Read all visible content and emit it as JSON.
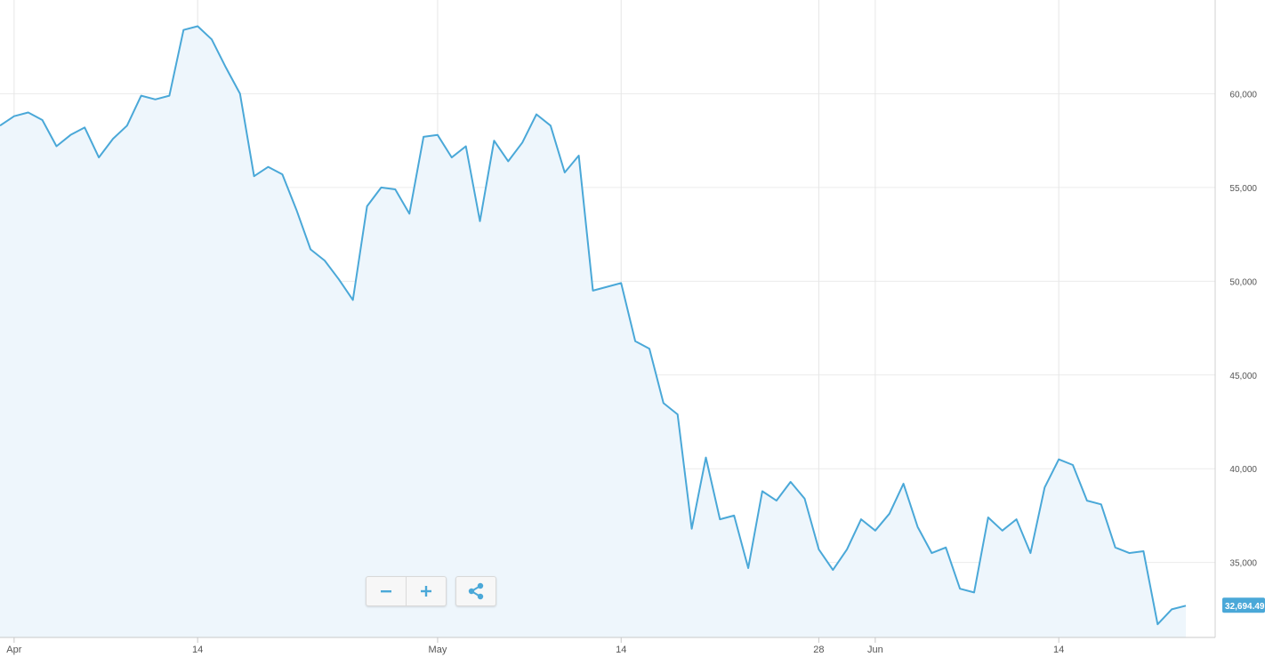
{
  "chart_data": {
    "type": "area",
    "title": "",
    "xlabel": "",
    "ylabel": "",
    "x_range": [
      "2021-03-31",
      "2021-06-23"
    ],
    "ylim": [
      31000,
      65000
    ],
    "y_ticks": [
      35000,
      40000,
      45000,
      50000,
      55000,
      60000
    ],
    "y_tick_labels": [
      "35,000",
      "40,000",
      "45,000",
      "50,000",
      "55,000",
      "60,000"
    ],
    "x_ticks": [
      {
        "date": "2021-04-01",
        "label": "Apr"
      },
      {
        "date": "2021-04-14",
        "label": "14"
      },
      {
        "date": "2021-05-01",
        "label": "May"
      },
      {
        "date": "2021-05-14",
        "label": "14"
      },
      {
        "date": "2021-05-28",
        "label": "28"
      },
      {
        "date": "2021-06-01",
        "label": "Jun"
      },
      {
        "date": "2021-06-14",
        "label": "14"
      }
    ],
    "grid": true,
    "line_color": "#4aa8d8",
    "fill_color": "#eef6fc",
    "last_value": 32694.49,
    "last_value_label": "32,694.49",
    "series": [
      {
        "points": [
          [
            "2021-03-31",
            58300
          ],
          [
            "2021-04-01",
            58800
          ],
          [
            "2021-04-02",
            59000
          ],
          [
            "2021-04-03",
            58600
          ],
          [
            "2021-04-04",
            57200
          ],
          [
            "2021-04-05",
            57800
          ],
          [
            "2021-04-06",
            58200
          ],
          [
            "2021-04-07",
            56600
          ],
          [
            "2021-04-08",
            57600
          ],
          [
            "2021-04-09",
            58300
          ],
          [
            "2021-04-10",
            59900
          ],
          [
            "2021-04-11",
            59700
          ],
          [
            "2021-04-12",
            59900
          ],
          [
            "2021-04-13",
            63400
          ],
          [
            "2021-04-14",
            63600
          ],
          [
            "2021-04-15",
            62900
          ],
          [
            "2021-04-16",
            61400
          ],
          [
            "2021-04-17",
            60000
          ],
          [
            "2021-04-18",
            55600
          ],
          [
            "2021-04-19",
            56100
          ],
          [
            "2021-04-20",
            55700
          ],
          [
            "2021-04-21",
            53800
          ],
          [
            "2021-04-22",
            51700
          ],
          [
            "2021-04-23",
            51100
          ],
          [
            "2021-04-24",
            50100
          ],
          [
            "2021-04-25",
            49000
          ],
          [
            "2021-04-26",
            54000
          ],
          [
            "2021-04-27",
            55000
          ],
          [
            "2021-04-28",
            54900
          ],
          [
            "2021-04-29",
            53600
          ],
          [
            "2021-04-30",
            57700
          ],
          [
            "2021-05-01",
            57800
          ],
          [
            "2021-05-02",
            56600
          ],
          [
            "2021-05-03",
            57200
          ],
          [
            "2021-05-04",
            53200
          ],
          [
            "2021-05-05",
            57500
          ],
          [
            "2021-05-06",
            56400
          ],
          [
            "2021-05-07",
            57400
          ],
          [
            "2021-05-08",
            58900
          ],
          [
            "2021-05-09",
            58300
          ],
          [
            "2021-05-10",
            55800
          ],
          [
            "2021-05-11",
            56700
          ],
          [
            "2021-05-12",
            49500
          ],
          [
            "2021-05-13",
            49700
          ],
          [
            "2021-05-14",
            49900
          ],
          [
            "2021-05-15",
            46800
          ],
          [
            "2021-05-16",
            46400
          ],
          [
            "2021-05-17",
            43500
          ],
          [
            "2021-05-18",
            42900
          ],
          [
            "2021-05-19",
            36800
          ],
          [
            "2021-05-20",
            40600
          ],
          [
            "2021-05-21",
            37300
          ],
          [
            "2021-05-22",
            37500
          ],
          [
            "2021-05-23",
            34700
          ],
          [
            "2021-05-24",
            38800
          ],
          [
            "2021-05-25",
            38300
          ],
          [
            "2021-05-26",
            39300
          ],
          [
            "2021-05-27",
            38400
          ],
          [
            "2021-05-28",
            35700
          ],
          [
            "2021-05-29",
            34600
          ],
          [
            "2021-05-30",
            35700
          ],
          [
            "2021-05-31",
            37300
          ],
          [
            "2021-06-01",
            36700
          ],
          [
            "2021-06-02",
            37600
          ],
          [
            "2021-06-03",
            39200
          ],
          [
            "2021-06-04",
            36900
          ],
          [
            "2021-06-05",
            35500
          ],
          [
            "2021-06-06",
            35800
          ],
          [
            "2021-06-07",
            33600
          ],
          [
            "2021-06-08",
            33400
          ],
          [
            "2021-06-09",
            37400
          ],
          [
            "2021-06-10",
            36700
          ],
          [
            "2021-06-11",
            37300
          ],
          [
            "2021-06-12",
            35500
          ],
          [
            "2021-06-13",
            39000
          ],
          [
            "2021-06-14",
            40500
          ],
          [
            "2021-06-15",
            40200
          ],
          [
            "2021-06-16",
            38300
          ],
          [
            "2021-06-17",
            38100
          ],
          [
            "2021-06-18",
            35800
          ],
          [
            "2021-06-19",
            35500
          ],
          [
            "2021-06-20",
            35600
          ],
          [
            "2021-06-21",
            31700
          ],
          [
            "2021-06-22",
            32500
          ],
          [
            "2021-06-23",
            32694.49
          ]
        ]
      }
    ]
  },
  "controls": [
    {
      "name": "zoom-out",
      "icon": "minus-icon"
    },
    {
      "name": "zoom-in",
      "icon": "plus-icon"
    },
    {
      "name": "share",
      "icon": "share-icon"
    }
  ]
}
